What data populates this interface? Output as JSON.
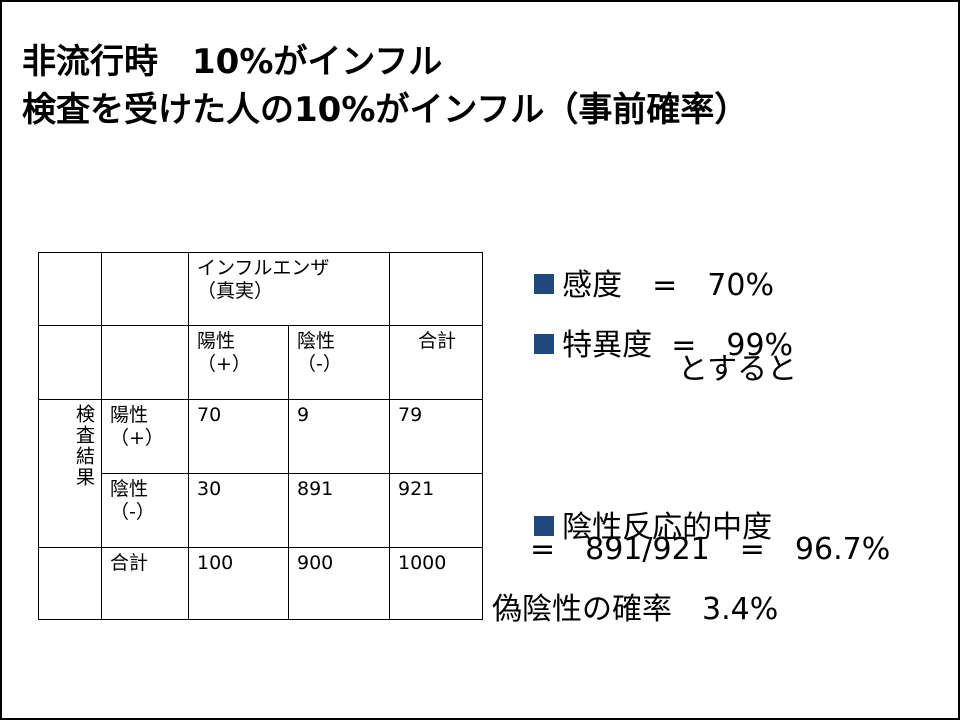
{
  "title": {
    "line1": "非流行時　10%がインフル",
    "line2": "検査を受けた人の10%がインフル（事前確率）"
  },
  "table": {
    "header_group": "インフルエンザ\n（真実）",
    "header_pos": "陽性\n（+）",
    "header_neg": "陰性\n（-）",
    "header_total": "合計",
    "row_group": "検査結果",
    "rows": [
      {
        "label": "陽性\n（+）",
        "pos": "70",
        "neg": "9",
        "total": "79"
      },
      {
        "label": "陰性\n（-）",
        "pos": "30",
        "neg": "891",
        "total": "921"
      },
      {
        "label": "合計",
        "pos": "100",
        "neg": "900",
        "total": "1000"
      }
    ]
  },
  "info": {
    "sensitivity": "感度　=　70%",
    "specificity": "特異度  =　99%",
    "then": "とすると",
    "npv_label": "陰性反応的中度",
    "npv_calc": "=　891/921　=　96.7%",
    "false_negative": "偽陰性の確率　3.4%"
  },
  "colors": {
    "bullet": "#1f497d"
  }
}
